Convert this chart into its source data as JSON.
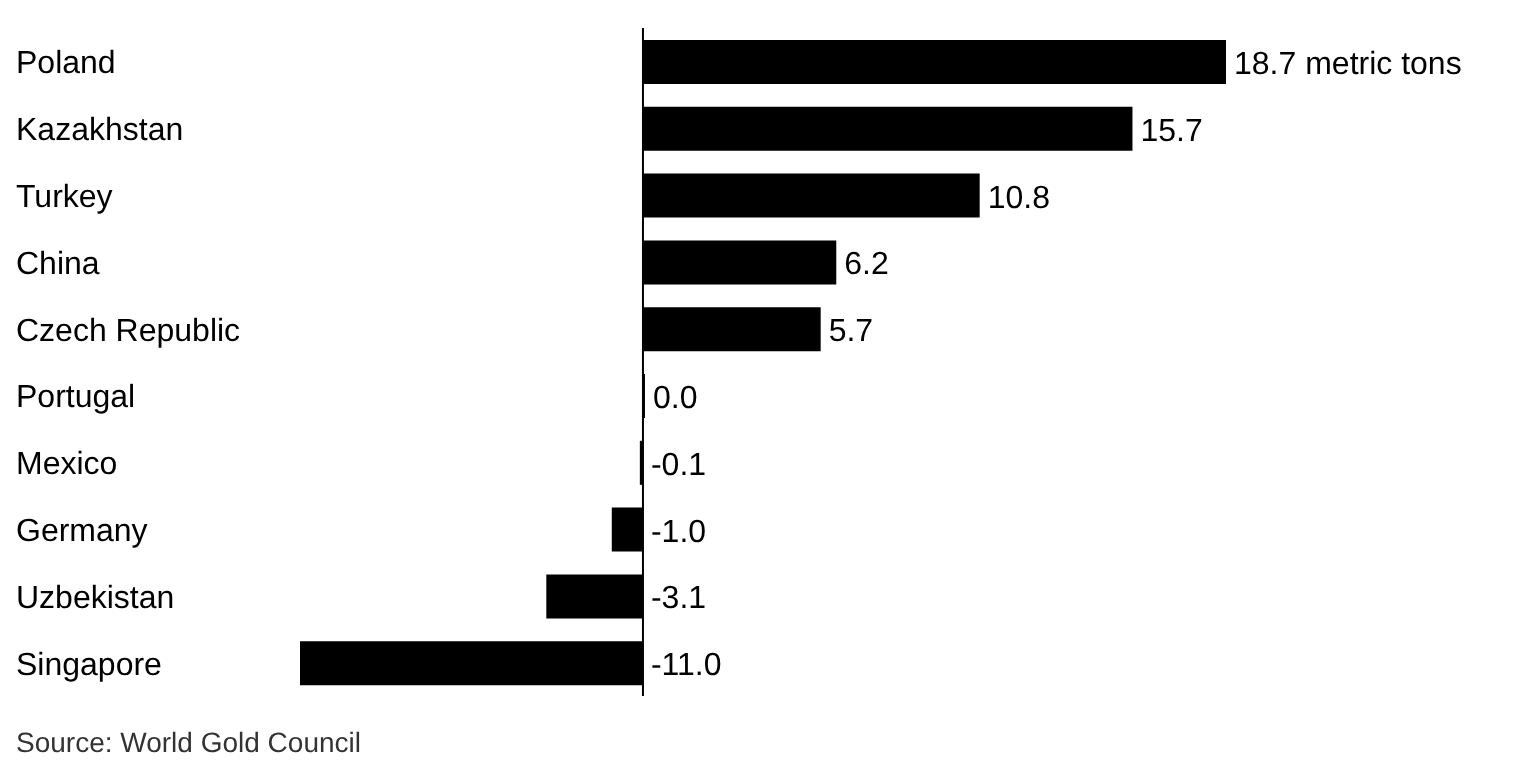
{
  "chart_data": {
    "type": "bar",
    "orientation": "horizontal",
    "categories": [
      "Poland",
      "Kazakhstan",
      "Turkey",
      "China",
      "Czech Republic",
      "Portugal",
      "Mexico",
      "Germany",
      "Uzbekistan",
      "Singapore"
    ],
    "values": [
      18.7,
      15.7,
      10.8,
      6.2,
      5.7,
      0.0,
      -0.1,
      -1.0,
      -3.1,
      -11.0
    ],
    "value_labels": [
      "18.7 metric tons",
      "15.7",
      "10.8",
      "6.2",
      "5.7",
      "0.0",
      "-0.1",
      "-1.0",
      "-3.1",
      "-11.0"
    ],
    "color": "#000000",
    "grid": false,
    "legend": false,
    "annotations": [
      "Source: World Gold Council"
    ]
  }
}
